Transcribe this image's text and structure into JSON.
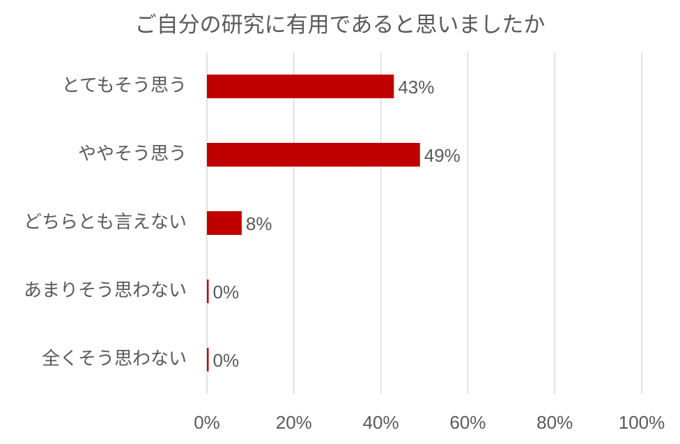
{
  "chart_data": {
    "type": "barh",
    "title": "ご自分の研究に有用であると思いましたか",
    "categories": [
      "とてもそう思う",
      "ややそう思う",
      "どちらとも言えない",
      "あまりそう思わない",
      "全くそう思わない"
    ],
    "values": [
      43,
      49,
      8,
      0,
      0
    ],
    "value_labels": [
      "43%",
      "49%",
      "8%",
      "0%",
      "0%"
    ],
    "color": "#c00000",
    "xlim": [
      0,
      100
    ],
    "xticks": [
      {
        "value": 0,
        "label": "0%"
      },
      {
        "value": 20,
        "label": "20%"
      },
      {
        "value": 40,
        "label": "40%"
      },
      {
        "value": 60,
        "label": "60%"
      },
      {
        "value": 80,
        "label": "80%"
      },
      {
        "value": 100,
        "label": "100%"
      }
    ],
    "grid": true
  }
}
